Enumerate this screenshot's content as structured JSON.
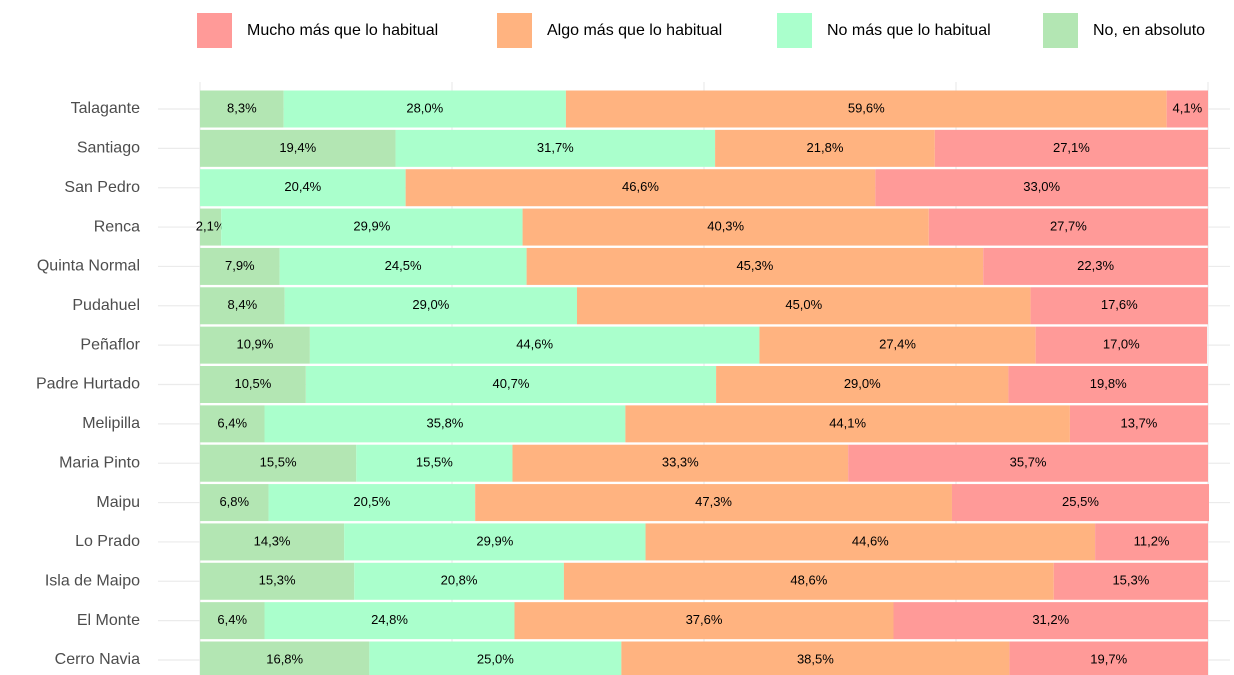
{
  "chart_data": {
    "type": "stacked_barh",
    "categories": [
      "Talagante",
      "Santiago",
      "San Pedro",
      "Renca",
      "Quinta Normal",
      "Pudahuel",
      "Peñaflor",
      "Padre Hurtado",
      "Melipilla",
      "Maria Pinto",
      "Maipu",
      "Lo Prado",
      "Isla de Maipo",
      "El Monte",
      "Cerro Navia"
    ],
    "series": [
      {
        "name": "Mucho más que lo habitual",
        "color": "#ff9a98",
        "values": [
          4.1,
          27.1,
          33.0,
          27.7,
          22.3,
          17.6,
          17.0,
          19.8,
          13.7,
          35.7,
          25.5,
          11.2,
          15.3,
          31.2,
          19.7
        ],
        "value_labels": [
          "4,1%",
          "27,1%",
          "33,0%",
          "27,7%",
          "22,3%",
          "17,6%",
          "17,0%",
          "19,8%",
          "13,7%",
          "35,7%",
          "25,5%",
          "11,2%",
          "15,3%",
          "31,2%",
          "19,7%"
        ]
      },
      {
        "name": "Algo más que lo habitual",
        "color": "#ffb380",
        "values": [
          59.6,
          21.8,
          46.6,
          40.3,
          45.3,
          45.0,
          27.4,
          29.0,
          44.1,
          33.3,
          47.3,
          44.6,
          48.6,
          37.6,
          38.5
        ],
        "value_labels": [
          "59,6%",
          "21,8%",
          "46,6%",
          "40,3%",
          "45,3%",
          "45,0%",
          "27,4%",
          "29,0%",
          "44,1%",
          "33,3%",
          "47,3%",
          "44,6%",
          "48,6%",
          "37,6%",
          "38,5%"
        ]
      },
      {
        "name": "No más que lo habitual",
        "color": "#aaffcc",
        "values": [
          28.0,
          31.7,
          20.4,
          29.9,
          24.5,
          29.0,
          44.6,
          40.7,
          35.8,
          15.5,
          20.5,
          29.9,
          20.8,
          24.8,
          25.0
        ],
        "value_labels": [
          "28,0%",
          "31,7%",
          "20,4%",
          "29,9%",
          "24,5%",
          "29,0%",
          "44,6%",
          "40,7%",
          "35,8%",
          "15,5%",
          "20,5%",
          "29,9%",
          "20,8%",
          "24,8%",
          "25,0%"
        ]
      },
      {
        "name": "No, en absoluto",
        "color": "#b3e6b3",
        "values": [
          8.3,
          19.4,
          null,
          2.1,
          7.9,
          8.4,
          10.9,
          10.5,
          6.4,
          15.5,
          6.8,
          14.3,
          15.3,
          6.4,
          16.8
        ],
        "value_labels": [
          "8,3%",
          "19,4%",
          null,
          "2,1%",
          "7,9%",
          "8,4%",
          "10,9%",
          "10,5%",
          "6,4%",
          "15,5%",
          "6,8%",
          "14,3%",
          "15,3%",
          "6,4%",
          "16,8%"
        ]
      }
    ],
    "xlim": [
      0,
      100
    ],
    "xticks": [
      0,
      25,
      50,
      75,
      100
    ],
    "grid": true,
    "legend": "top"
  }
}
